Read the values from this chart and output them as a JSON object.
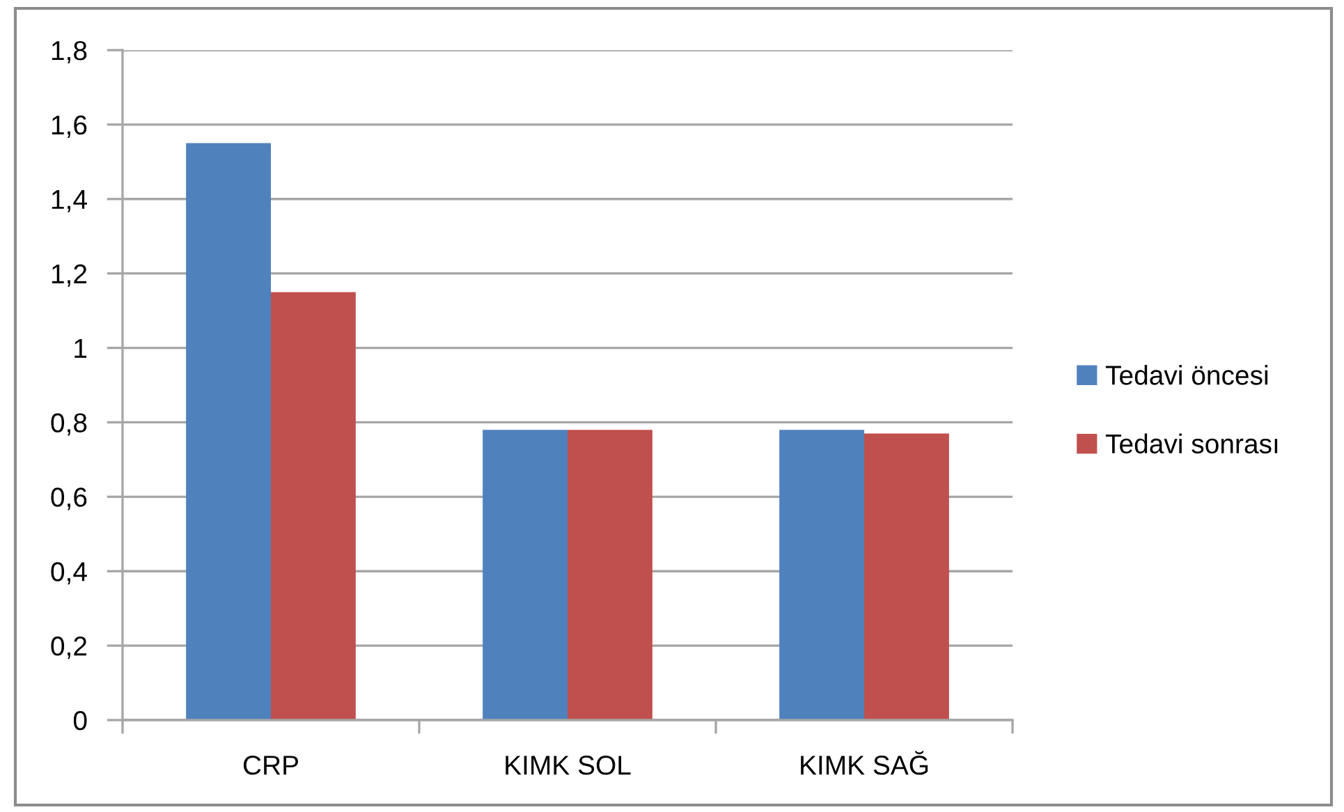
{
  "chart_data": {
    "type": "bar",
    "categories": [
      "CRP",
      "KIMK SOL",
      "KIMK SAĞ"
    ],
    "series": [
      {
        "name": "Tedavi öncesi",
        "color": "#4f81bd",
        "values": [
          1.55,
          0.78,
          0.78
        ]
      },
      {
        "name": "Tedavi sonrası",
        "color": "#c0504d",
        "values": [
          1.15,
          0.78,
          0.77
        ]
      }
    ],
    "ylim": [
      0,
      1.8
    ],
    "yticks": [
      0,
      {
        "value": 0.2,
        "label": "0,2"
      },
      {
        "value": 0.4,
        "label": "0,4"
      },
      {
        "value": 0.6,
        "label": "0,6"
      },
      {
        "value": 0.8,
        "label": "0,8"
      },
      1,
      {
        "value": 1.2,
        "label": "1,2"
      },
      {
        "value": 1.4,
        "label": "1,4"
      },
      {
        "value": 1.6,
        "label": "1,6"
      },
      {
        "value": 1.8,
        "label": "1,8"
      }
    ],
    "grid": "y",
    "legend": "right"
  }
}
